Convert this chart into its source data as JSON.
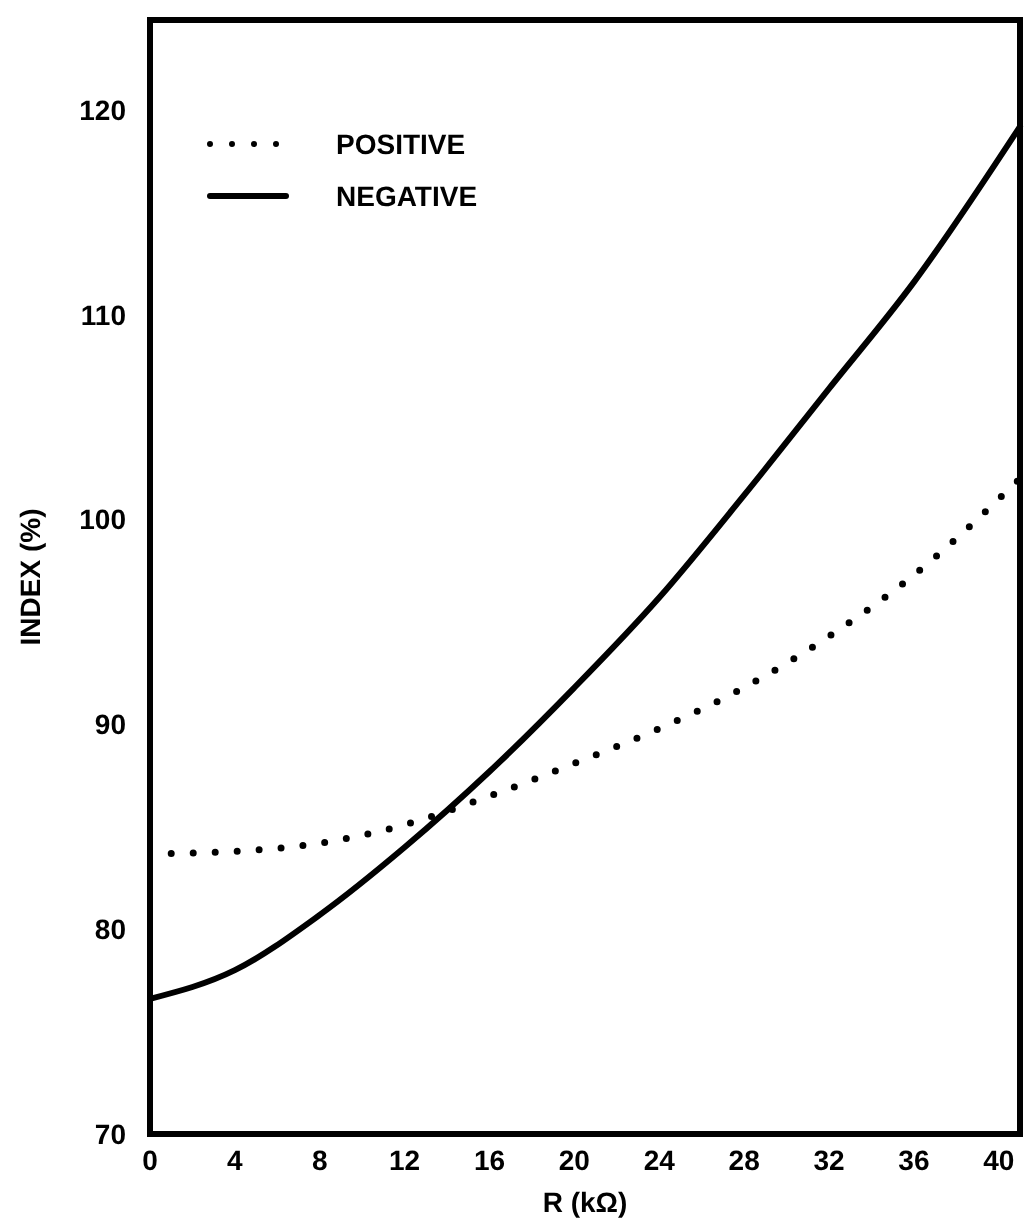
{
  "chart_data": {
    "type": "line",
    "xlabel": "R (kΩ)",
    "ylabel": "INDEX (%)",
    "xlim": [
      0,
      41
    ],
    "ylim": [
      70,
      124.4
    ],
    "xticks": [
      0,
      4,
      8,
      12,
      16,
      20,
      24,
      28,
      32,
      36,
      40
    ],
    "yticks": [
      70,
      80,
      90,
      100,
      110,
      120
    ],
    "legend": "top left",
    "grid": false,
    "series": [
      {
        "name": "POSITIVE",
        "color": "#000000",
        "line_style": "dotted",
        "x": [
          1,
          4,
          8,
          12,
          16,
          20,
          24,
          28,
          32,
          36,
          41
        ],
        "values": [
          83.7,
          83.8,
          84.2,
          85.1,
          86.5,
          88.1,
          89.8,
          91.8,
          94.3,
          97.3,
          102
        ]
      },
      {
        "name": "NEGATIVE",
        "color": "#000000",
        "line_style": "solid",
        "x": [
          0,
          4,
          8,
          12,
          16,
          20,
          24,
          28,
          32,
          36,
          41
        ],
        "values": [
          76.6,
          78,
          80.7,
          84,
          87.7,
          91.8,
          96.2,
          101.2,
          106.4,
          111.6,
          119.2
        ]
      }
    ]
  }
}
